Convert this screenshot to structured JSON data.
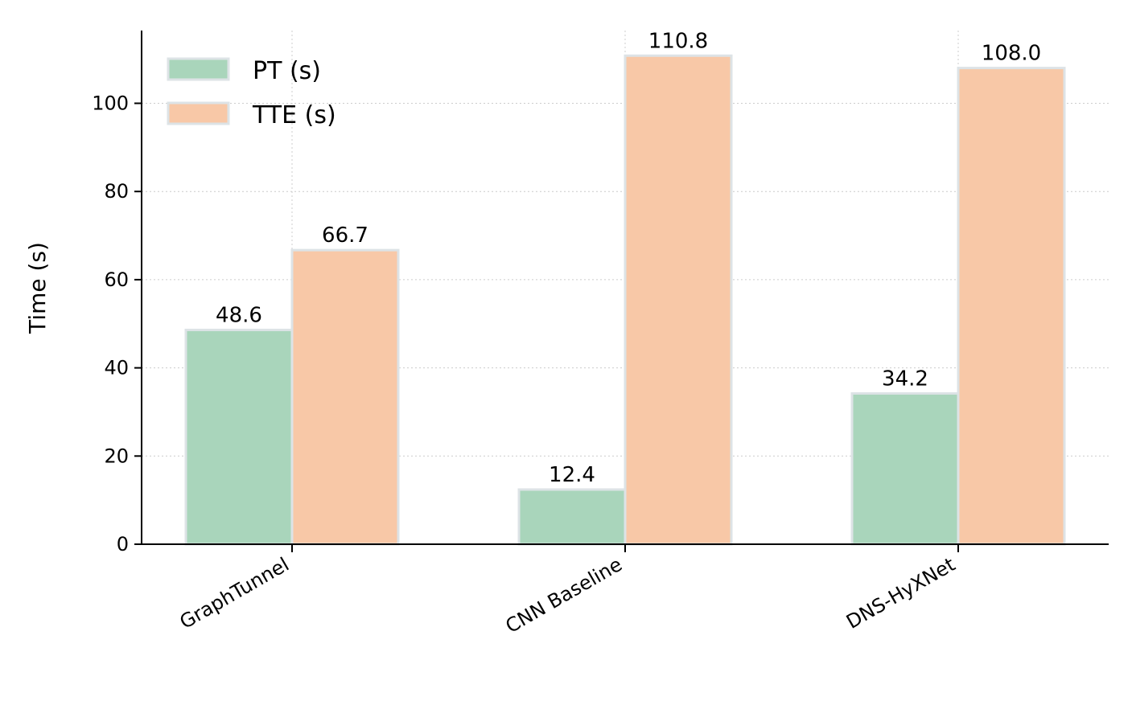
{
  "chart_data": {
    "type": "bar",
    "title": "",
    "xlabel": "",
    "ylabel": "Time (s)",
    "categories": [
      "GraphTunnel",
      "CNN Baseline",
      "DNS-HyXNet"
    ],
    "series": [
      {
        "name": "PT (s)",
        "values": [
          48.6,
          12.4,
          34.2
        ],
        "color": "#a9d5bb"
      },
      {
        "name": "TTE (s)",
        "values": [
          66.7,
          110.8,
          108.0
        ],
        "color": "#f8c8a7"
      }
    ],
    "value_labels": [
      [
        "48.6",
        "12.4",
        "34.2"
      ],
      [
        "66.7",
        "110.8",
        "108.0"
      ]
    ],
    "ylim": [
      0,
      116.5
    ],
    "yticks": [
      0,
      20,
      40,
      60,
      80,
      100
    ],
    "grid": true,
    "legend_position": "top-left",
    "bar_edge_color": "#dde3e6"
  }
}
